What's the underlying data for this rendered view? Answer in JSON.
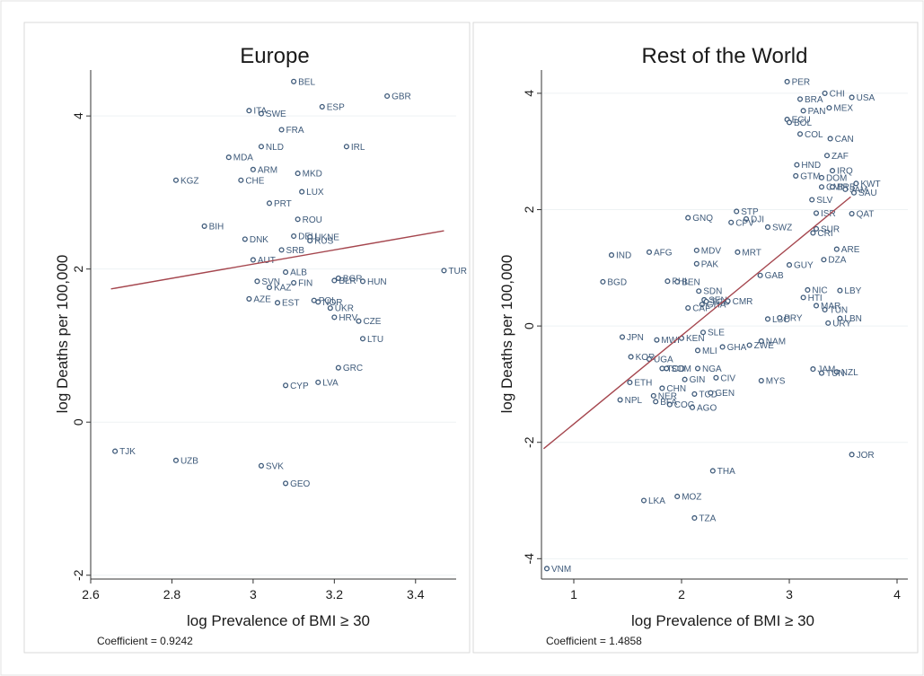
{
  "chart_data": [
    {
      "type": "scatter",
      "title": "Europe",
      "xlabel": "log Prevalence of BMI ≥ 30",
      "ylabel": "log Deaths per 100,000",
      "xlim": [
        2.6,
        3.5
      ],
      "ylim": [
        -2.05,
        4.6
      ],
      "xticks": [
        2.6,
        2.8,
        3.0,
        3.2,
        3.4
      ],
      "xtick_labels": [
        "2.6",
        "2.8",
        "3",
        "3.2",
        "3.4"
      ],
      "yticks": [
        -2,
        0,
        2,
        4
      ],
      "ytick_labels": [
        "-2",
        "0",
        "2",
        "4"
      ],
      "grid": "horizontal",
      "fit_line": {
        "x": [
          2.65,
          3.47
        ],
        "y": [
          1.74,
          2.5
        ]
      },
      "note": "Coefficient = 0.9242",
      "points": [
        {
          "label": "BEL",
          "x": 3.1,
          "y": 4.45
        },
        {
          "label": "GBR",
          "x": 3.33,
          "y": 4.26
        },
        {
          "label": "ESP",
          "x": 3.17,
          "y": 4.12
        },
        {
          "label": "ITA",
          "x": 2.99,
          "y": 4.07
        },
        {
          "label": "SWE",
          "x": 3.02,
          "y": 4.03
        },
        {
          "label": "FRA",
          "x": 3.07,
          "y": 3.82
        },
        {
          "label": "NLD",
          "x": 3.02,
          "y": 3.6
        },
        {
          "label": "IRL",
          "x": 3.23,
          "y": 3.6
        },
        {
          "label": "MDA",
          "x": 2.94,
          "y": 3.46
        },
        {
          "label": "ARM",
          "x": 3.0,
          "y": 3.3
        },
        {
          "label": "MKD",
          "x": 3.11,
          "y": 3.25
        },
        {
          "label": "KGZ",
          "x": 2.81,
          "y": 3.16
        },
        {
          "label": "CHE",
          "x": 2.97,
          "y": 3.16
        },
        {
          "label": "LUX",
          "x": 3.12,
          "y": 3.01
        },
        {
          "label": "PRT",
          "x": 3.04,
          "y": 2.86
        },
        {
          "label": "ROU",
          "x": 3.11,
          "y": 2.65
        },
        {
          "label": "BIH",
          "x": 2.88,
          "y": 2.56
        },
        {
          "label": "DEU",
          "x": 3.1,
          "y": 2.43
        },
        {
          "label": "UKNE",
          "x": 3.14,
          "y": 2.42
        },
        {
          "label": "RUS",
          "x": 3.14,
          "y": 2.37
        },
        {
          "label": "DNK",
          "x": 2.98,
          "y": 2.39
        },
        {
          "label": "SRB",
          "x": 3.07,
          "y": 2.25
        },
        {
          "label": "AUT",
          "x": 3.0,
          "y": 2.12
        },
        {
          "label": "TUR",
          "x": 3.47,
          "y": 1.98
        },
        {
          "label": "ALB",
          "x": 3.08,
          "y": 1.96
        },
        {
          "label": "BGR",
          "x": 3.21,
          "y": 1.88
        },
        {
          "label": "BLR",
          "x": 3.2,
          "y": 1.85
        },
        {
          "label": "HUN",
          "x": 3.27,
          "y": 1.84
        },
        {
          "label": "SVN",
          "x": 3.01,
          "y": 1.84
        },
        {
          "label": "FIN",
          "x": 3.1,
          "y": 1.82
        },
        {
          "label": "KAZ",
          "x": 3.04,
          "y": 1.76
        },
        {
          "label": "AZE",
          "x": 2.99,
          "y": 1.61
        },
        {
          "label": "EST",
          "x": 3.06,
          "y": 1.56
        },
        {
          "label": "POL",
          "x": 3.15,
          "y": 1.59
        },
        {
          "label": "NOR",
          "x": 3.16,
          "y": 1.57
        },
        {
          "label": "UKR",
          "x": 3.19,
          "y": 1.49
        },
        {
          "label": "HRV",
          "x": 3.2,
          "y": 1.37
        },
        {
          "label": "CZE",
          "x": 3.26,
          "y": 1.32
        },
        {
          "label": "LTU",
          "x": 3.27,
          "y": 1.09
        },
        {
          "label": "GRC",
          "x": 3.21,
          "y": 0.71
        },
        {
          "label": "LVA",
          "x": 3.16,
          "y": 0.52
        },
        {
          "label": "CYP",
          "x": 3.08,
          "y": 0.48
        },
        {
          "label": "TJK",
          "x": 2.66,
          "y": -0.38
        },
        {
          "label": "UZB",
          "x": 2.81,
          "y": -0.5
        },
        {
          "label": "SVK",
          "x": 3.02,
          "y": -0.57
        },
        {
          "label": "GEO",
          "x": 3.08,
          "y": -0.8
        }
      ]
    },
    {
      "type": "scatter",
      "title": "Rest of the World",
      "xlabel": "log Prevalence of BMI ≥ 30",
      "ylabel": "log Deaths per 100,000",
      "xlim": [
        0.7,
        4.1
      ],
      "ylim": [
        -4.35,
        4.4
      ],
      "xticks": [
        1,
        2,
        3,
        4
      ],
      "xtick_labels": [
        "1",
        "2",
        "3",
        "4"
      ],
      "yticks": [
        -4,
        -2,
        0,
        2,
        4
      ],
      "ytick_labels": [
        "-4",
        "-2",
        "0",
        "2",
        "4"
      ],
      "grid": "horizontal",
      "fit_line": {
        "x": [
          0.72,
          3.57
        ],
        "y": [
          -2.11,
          2.22
        ]
      },
      "note": "Coefficient = 1.4858",
      "points": [
        {
          "label": "PER",
          "x": 2.98,
          "y": 4.2
        },
        {
          "label": "CHI",
          "x": 3.33,
          "y": 4.0
        },
        {
          "label": "USA",
          "x": 3.58,
          "y": 3.93
        },
        {
          "label": "BRA",
          "x": 3.1,
          "y": 3.9
        },
        {
          "label": "MEX",
          "x": 3.37,
          "y": 3.75
        },
        {
          "label": "PAN",
          "x": 3.13,
          "y": 3.7
        },
        {
          "label": "ECU",
          "x": 2.98,
          "y": 3.55
        },
        {
          "label": "BOL",
          "x": 3.0,
          "y": 3.5
        },
        {
          "label": "COL",
          "x": 3.1,
          "y": 3.3
        },
        {
          "label": "CAN",
          "x": 3.38,
          "y": 3.22
        },
        {
          "label": "ZAF",
          "x": 3.35,
          "y": 2.93
        },
        {
          "label": "HND",
          "x": 3.07,
          "y": 2.77
        },
        {
          "label": "IRQ",
          "x": 3.4,
          "y": 2.67
        },
        {
          "label": "GTM",
          "x": 3.06,
          "y": 2.58
        },
        {
          "label": "DOM",
          "x": 3.3,
          "y": 2.55
        },
        {
          "label": "KWT",
          "x": 3.62,
          "y": 2.45
        },
        {
          "label": "OMN",
          "x": 3.3,
          "y": 2.39
        },
        {
          "label": "BRB",
          "x": 3.4,
          "y": 2.39
        },
        {
          "label": "JAM",
          "x": 3.52,
          "y": 2.35
        },
        {
          "label": "SAU",
          "x": 3.6,
          "y": 2.29
        },
        {
          "label": "SLV",
          "x": 3.21,
          "y": 2.17
        },
        {
          "label": "STP",
          "x": 2.51,
          "y": 1.97
        },
        {
          "label": "ISR",
          "x": 3.25,
          "y": 1.94
        },
        {
          "label": "QAT",
          "x": 3.58,
          "y": 1.93
        },
        {
          "label": "GNQ",
          "x": 2.06,
          "y": 1.86
        },
        {
          "label": "DJI",
          "x": 2.6,
          "y": 1.84
        },
        {
          "label": "CPV",
          "x": 2.46,
          "y": 1.78
        },
        {
          "label": "SWZ",
          "x": 2.8,
          "y": 1.7
        },
        {
          "label": "SUR",
          "x": 3.25,
          "y": 1.67
        },
        {
          "label": "CRI",
          "x": 3.22,
          "y": 1.6
        },
        {
          "label": "IND",
          "x": 1.35,
          "y": 1.22
        },
        {
          "label": "AFG",
          "x": 1.7,
          "y": 1.27
        },
        {
          "label": "MDV",
          "x": 2.14,
          "y": 1.3
        },
        {
          "label": "MRT",
          "x": 2.52,
          "y": 1.27
        },
        {
          "label": "ARE",
          "x": 3.44,
          "y": 1.32
        },
        {
          "label": "DZA",
          "x": 3.32,
          "y": 1.14
        },
        {
          "label": "PAK",
          "x": 2.14,
          "y": 1.07
        },
        {
          "label": "GUY",
          "x": 3.0,
          "y": 1.05
        },
        {
          "label": "GAB",
          "x": 2.73,
          "y": 0.87
        },
        {
          "label": "BGD",
          "x": 1.27,
          "y": 0.76
        },
        {
          "label": "PHL",
          "x": 1.87,
          "y": 0.77
        },
        {
          "label": "BEN",
          "x": 1.96,
          "y": 0.76
        },
        {
          "label": "NIC",
          "x": 3.17,
          "y": 0.62
        },
        {
          "label": "LBY",
          "x": 3.47,
          "y": 0.61
        },
        {
          "label": "SDN",
          "x": 2.16,
          "y": 0.6
        },
        {
          "label": "HTI",
          "x": 3.13,
          "y": 0.49
        },
        {
          "label": "SEN",
          "x": 2.21,
          "y": 0.45
        },
        {
          "label": "TGO",
          "x": 2.23,
          "y": 0.42
        },
        {
          "label": "CMR",
          "x": 2.43,
          "y": 0.43
        },
        {
          "label": "GHA",
          "x": 2.19,
          "y": 0.37
        },
        {
          "label": "CAF",
          "x": 2.06,
          "y": 0.31
        },
        {
          "label": "MAR",
          "x": 3.25,
          "y": 0.35
        },
        {
          "label": "TUN",
          "x": 3.33,
          "y": 0.28
        },
        {
          "label": "LSO",
          "x": 2.8,
          "y": 0.12
        },
        {
          "label": "PRY",
          "x": 2.91,
          "y": 0.14
        },
        {
          "label": "LBN",
          "x": 3.47,
          "y": 0.13
        },
        {
          "label": "URY",
          "x": 3.36,
          "y": 0.05
        },
        {
          "label": "SLE",
          "x": 2.2,
          "y": -0.11
        },
        {
          "label": "KEN",
          "x": 2.0,
          "y": -0.21
        },
        {
          "label": "JPN",
          "x": 1.45,
          "y": -0.19
        },
        {
          "label": "MWI",
          "x": 1.77,
          "y": -0.24
        },
        {
          "label": "NAM",
          "x": 2.74,
          "y": -0.26
        },
        {
          "label": "GHA",
          "x": 2.38,
          "y": -0.36
        },
        {
          "label": "ZWE",
          "x": 2.63,
          "y": -0.33
        },
        {
          "label": "MLI",
          "x": 2.15,
          "y": -0.42
        },
        {
          "label": "KOR",
          "x": 1.53,
          "y": -0.53
        },
        {
          "label": "UGA",
          "x": 1.7,
          "y": -0.57
        },
        {
          "label": "TCD",
          "x": 1.82,
          "y": -0.73
        },
        {
          "label": "SOM",
          "x": 1.86,
          "y": -0.73
        },
        {
          "label": "NGA",
          "x": 2.15,
          "y": -0.73
        },
        {
          "label": "JAM",
          "x": 3.22,
          "y": -0.74
        },
        {
          "label": "NZL",
          "x": 3.44,
          "y": -0.79
        },
        {
          "label": "TUN",
          "x": 3.3,
          "y": -0.81
        },
        {
          "label": "GIN",
          "x": 2.03,
          "y": -0.92
        },
        {
          "label": "CIV",
          "x": 2.32,
          "y": -0.89
        },
        {
          "label": "MYS",
          "x": 2.74,
          "y": -0.94
        },
        {
          "label": "ETH",
          "x": 1.52,
          "y": -0.97
        },
        {
          "label": "CHN",
          "x": 1.82,
          "y": -1.07
        },
        {
          "label": "NER",
          "x": 1.74,
          "y": -1.2
        },
        {
          "label": "TCD",
          "x": 2.12,
          "y": -1.17
        },
        {
          "label": "GEN",
          "x": 2.27,
          "y": -1.15
        },
        {
          "label": "NPL",
          "x": 1.43,
          "y": -1.27
        },
        {
          "label": "BFA",
          "x": 1.76,
          "y": -1.3
        },
        {
          "label": "COG",
          "x": 1.89,
          "y": -1.35
        },
        {
          "label": "AGO",
          "x": 2.1,
          "y": -1.4
        },
        {
          "label": "JOR",
          "x": 3.58,
          "y": -2.21
        },
        {
          "label": "THA",
          "x": 2.29,
          "y": -2.49
        },
        {
          "label": "LKA",
          "x": 1.65,
          "y": -3.0
        },
        {
          "label": "MOZ",
          "x": 1.96,
          "y": -2.93
        },
        {
          "label": "TZA",
          "x": 2.12,
          "y": -3.3
        },
        {
          "label": "VNM",
          "x": 0.75,
          "y": -4.17
        }
      ]
    }
  ]
}
